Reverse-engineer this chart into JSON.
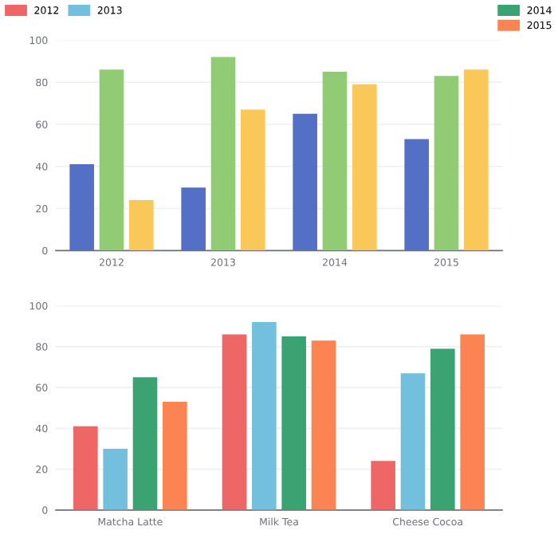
{
  "chart_data": [
    {
      "type": "bar",
      "categories": [
        "2012",
        "2013",
        "2014",
        "2015"
      ],
      "ylim": [
        0,
        100
      ],
      "yticks": [
        0,
        20,
        40,
        60,
        80,
        100
      ],
      "grid": "y",
      "series": [
        {
          "color": "#5470c6",
          "values": [
            41,
            30,
            65,
            53
          ]
        },
        {
          "color": "#91cc75",
          "values": [
            86,
            92,
            85,
            83
          ]
        },
        {
          "color": "#fac858",
          "values": [
            24,
            67,
            79,
            86
          ]
        }
      ]
    },
    {
      "type": "bar",
      "categories": [
        "Matcha Latte",
        "Milk Tea",
        "Cheese Cocoa"
      ],
      "ylim": [
        0,
        100
      ],
      "yticks": [
        0,
        20,
        40,
        60,
        80,
        100
      ],
      "grid": "y",
      "legend": "top",
      "series": [
        {
          "name": "2012",
          "color": "#ee6666",
          "values": [
            41,
            86,
            24
          ]
        },
        {
          "name": "2013",
          "color": "#73c0de",
          "values": [
            30,
            92,
            67
          ]
        },
        {
          "name": "2014",
          "color": "#3ba272",
          "values": [
            65,
            85,
            79
          ]
        },
        {
          "name": "2015",
          "color": "#fc8452",
          "values": [
            53,
            83,
            86
          ]
        }
      ]
    }
  ]
}
